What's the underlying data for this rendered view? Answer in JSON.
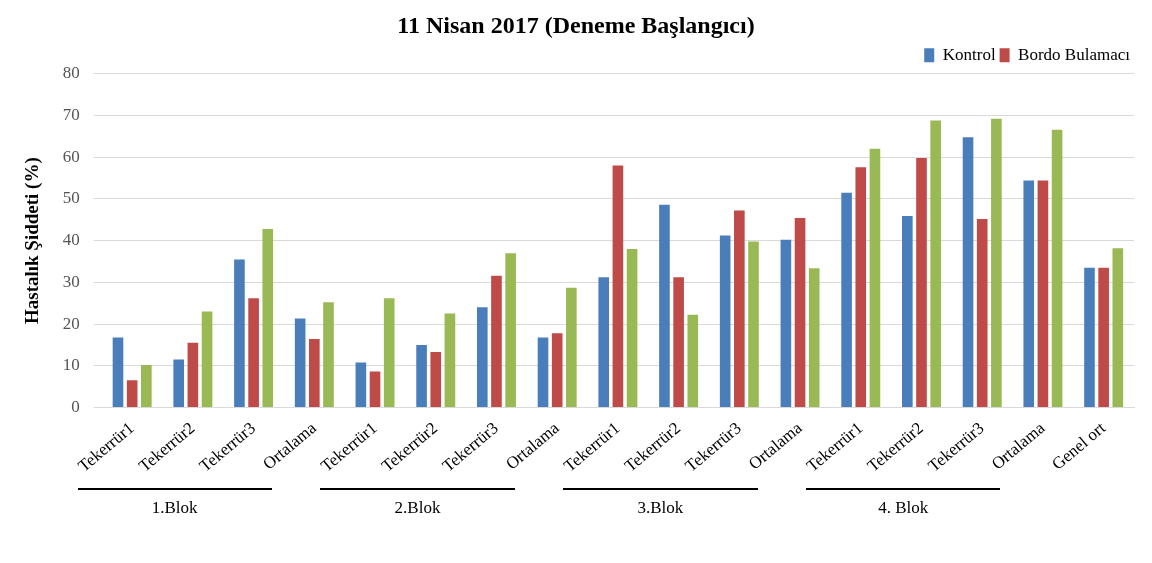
{
  "chart_data": {
    "type": "bar",
    "title": "11 Nisan 2017 (Deneme Başlangıcı)",
    "ylabel": "Hastalık Şiddeti (%)",
    "categories": [
      "Tekerrür1",
      "Tekerrür2",
      "Tekerrür3",
      "Ortalama",
      "Tekerrür1",
      "Tekerrür2",
      "Tekerrür3",
      "Ortalama",
      "Tekerrür1",
      "Tekerrür2",
      "Tekerrür3",
      "Ortalama",
      "Tekerrür1",
      "Tekerrür2",
      "Tekerrür3",
      "Ortalama",
      "Genel ort"
    ],
    "series": [
      {
        "name": "Kontrol",
        "color": "#4a7ebb",
        "values": [
          16.8,
          11.5,
          35.5,
          21.3,
          10.8,
          15,
          24,
          16.8,
          31.2,
          48.6,
          41.2,
          40.2,
          51.5,
          45.9,
          64.8,
          54.4,
          33.5
        ]
      },
      {
        "name": "Bordo Bulamacı",
        "color": "#be4b48",
        "values": [
          6.5,
          15.5,
          26.2,
          16.4,
          8.6,
          13.3,
          31.6,
          17.8,
          58,
          31.2,
          47.2,
          45.4,
          57.6,
          59.8,
          45.2,
          54.4,
          33.5
        ]
      },
      {
        "color": "#98b954",
        "values": [
          10.2,
          23,
          42.8,
          25.2,
          26.2,
          22.5,
          37,
          28.7,
          38,
          22.2,
          39.8,
          33.4,
          62,
          68.8,
          69.2,
          66.6,
          38.2
        ]
      }
    ],
    "ylim": [
      0,
      80
    ],
    "yticks": [
      0,
      10,
      20,
      30,
      40,
      50,
      60,
      70,
      80
    ],
    "grid": "y",
    "legend": "top right",
    "annotations": [
      "1.Blok",
      "2.Blok",
      "3.Blok",
      "4. Blok"
    ]
  }
}
